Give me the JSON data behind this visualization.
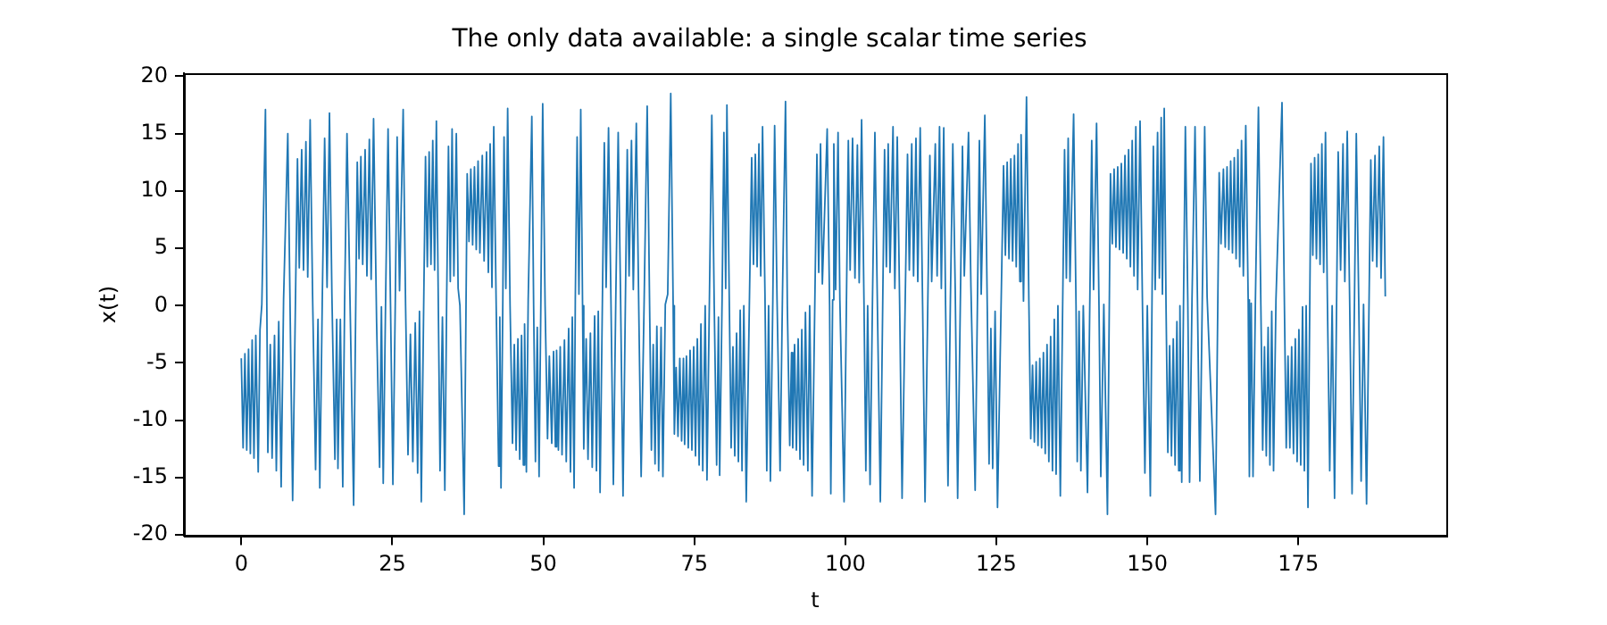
{
  "chart_data": {
    "type": "line",
    "title": "The only data available: a single scalar time series",
    "xlabel": "t",
    "ylabel": "x(t)",
    "xlim": [
      -9.5,
      199.5
    ],
    "ylim": [
      -20.1,
      20.3
    ],
    "xticks": [
      0,
      25,
      50,
      75,
      100,
      125,
      150,
      175
    ],
    "yticks": [
      -20,
      -15,
      -10,
      -5,
      0,
      5,
      10,
      15,
      20
    ],
    "grid": false,
    "legend": false,
    "marker": "none",
    "line_style": "solid",
    "series": [
      {
        "color": "#1f77b4",
        "x": [
          0,
          0.3,
          0.6,
          0.9,
          1.2,
          1.5,
          1.8,
          2.1,
          2.4,
          2.8,
          3.1,
          3.4,
          4.0,
          4.4,
          4.8,
          5.1,
          5.5,
          5.8,
          6.2,
          6.6,
          7.0,
          7.7,
          8.5,
          9.3,
          9.6,
          10.0,
          10.3,
          10.7,
          11.0,
          11.4,
          11.8,
          12.3,
          12.7,
          13.0,
          13.4,
          13.8,
          14.2,
          14.6,
          15.0,
          15.5,
          15.8,
          16.0,
          16.4,
          16.8,
          17.1,
          17.5,
          18.0,
          18.6,
          19.2,
          19.5,
          19.8,
          20.1,
          20.5,
          20.8,
          21.2,
          21.5,
          21.9,
          22.4,
          22.9,
          23.2,
          23.5,
          23.9,
          24.3,
          24.7,
          25.1,
          25.5,
          25.8,
          26.2,
          26.8,
          27.2,
          27.6,
          28.0,
          28.4,
          28.8,
          29.2,
          29.5,
          29.8,
          30.5,
          30.8,
          31.1,
          31.4,
          31.7,
          32.0,
          32.3,
          32.6,
          32.9,
          33.3,
          33.7,
          34.0,
          34.3,
          34.6,
          34.9,
          35.2,
          35.6,
          35.9,
          36.2,
          36.9,
          37.4,
          37.7,
          38.0,
          38.3,
          38.6,
          38.9,
          39.2,
          39.5,
          39.9,
          40.2,
          40.6,
          40.9,
          41.2,
          41.5,
          41.8,
          42.2,
          42.6,
          42.8,
          43.0,
          43.3,
          43.5,
          43.8,
          44.1,
          44.5,
          44.9,
          45.2,
          45.5,
          45.8,
          46.1,
          46.4,
          46.7,
          46.9,
          47.2,
          47.5,
          48.1,
          48.4,
          48.7,
          49.0,
          49.3,
          49.6,
          49.9,
          50.3,
          50.7,
          51.0,
          51.4,
          51.7,
          52.0,
          52.2,
          52.5,
          52.8,
          53.1,
          53.5,
          53.8,
          54.2,
          54.5,
          54.8,
          55.1,
          55.3,
          55.6,
          55.9,
          56.2,
          56.5,
          56.7,
          57.1,
          57.4,
          57.8,
          58.1,
          58.5,
          58.8,
          59.1,
          59.4,
          60.1,
          60.4,
          60.8,
          61.2,
          61.6,
          62.0,
          62.4,
          62.8,
          63.2,
          63.9,
          64.2,
          64.6,
          64.9,
          65.4,
          65.8,
          66.2,
          66.7,
          67.2,
          67.6,
          67.9,
          68.2,
          68.5,
          68.8,
          69.1,
          69.5,
          69.8,
          70.2,
          70.6,
          71.1,
          71.5,
          71.7,
          72.0,
          72.3,
          72.6,
          72.9,
          73.2,
          73.4,
          73.7,
          74.0,
          74.3,
          74.6,
          74.9,
          75.2,
          75.5,
          75.8,
          76.1,
          76.4,
          76.8,
          77.1,
          77.5,
          77.9,
          78.3,
          78.7,
          79.0,
          79.2,
          79.6,
          79.9,
          80.2,
          80.4,
          80.8,
          81.1,
          81.4,
          81.7,
          82.0,
          82.3,
          82.6,
          82.9,
          83.2,
          83.6,
          84.5,
          84.8,
          85.1,
          85.4,
          85.7,
          86.0,
          86.3,
          86.7,
          87.0,
          87.3,
          87.6,
          88.0,
          88.3,
          88.7,
          89.2,
          89.6,
          90.1,
          90.4,
          90.8,
          91.1,
          91.3,
          91.6,
          91.9,
          92.2,
          92.5,
          92.8,
          93.1,
          93.4,
          93.8,
          94.1,
          94.5,
          95.3,
          95.6,
          95.9,
          96.2,
          97.0,
          97.4,
          97.6,
          97.9,
          98.1,
          98.4,
          98.8,
          99.1,
          99.8,
          100.5,
          100.8,
          101.2,
          101.6,
          102.0,
          102.3,
          102.7,
          103.1,
          103.4,
          103.7,
          104.1,
          104.5,
          104.9,
          105.3,
          105.8,
          106.5,
          106.8,
          107.1,
          107.4,
          107.9,
          108.2,
          108.6,
          109.0,
          109.4,
          110.3,
          110.6,
          111.0,
          111.3,
          111.7,
          112.0,
          112.4,
          112.8,
          113.2,
          114.0,
          114.3,
          114.9,
          115.2,
          115.6,
          115.9,
          116.3,
          116.6,
          117.0,
          117.4,
          117.8,
          118.2,
          118.6,
          119.4,
          119.7,
          120.4,
          120.8,
          121.5,
          122.2,
          122.5,
          123.1,
          123.5,
          123.8,
          124.1,
          124.4,
          124.8,
          125.2,
          126.2,
          126.5,
          126.8,
          127.1,
          127.4,
          127.7,
          128.0,
          128.3,
          128.6,
          128.9,
          129.1,
          129.5,
          130.0,
          130.4,
          130.7,
          131.0,
          131.3,
          131.6,
          131.9,
          132.2,
          132.5,
          132.8,
          133.1,
          133.4,
          133.7,
          134.0,
          134.3,
          134.6,
          134.9,
          135.2,
          135.6,
          136.3,
          136.6,
          136.9,
          137.2,
          137.8,
          138.2,
          138.4,
          138.7,
          139.0,
          139.4,
          140.1,
          140.8,
          141.1,
          141.6,
          142.0,
          142.3,
          142.8,
          143.4,
          143.9,
          144.2,
          144.5,
          144.8,
          145.1,
          145.4,
          145.7,
          146.0,
          146.3,
          146.6,
          146.9,
          147.2,
          147.5,
          147.8,
          148.1,
          148.4,
          148.8,
          149.2,
          149.6,
          150.0,
          150.5,
          151.0,
          151.3,
          151.7,
          152.0,
          152.3,
          152.5,
          152.8,
          153.1,
          153.4,
          153.7,
          154.0,
          154.3,
          154.6,
          154.9,
          155.2,
          155.4,
          155.7,
          156.0,
          156.3,
          156.7,
          157.0,
          157.4,
          157.9,
          158.3,
          158.7,
          159.1,
          159.5,
          159.9,
          161.3,
          161.9,
          162.2,
          162.6,
          162.9,
          163.2,
          163.5,
          163.8,
          164.1,
          164.4,
          164.7,
          165.0,
          165.3,
          165.6,
          165.9,
          166.3,
          166.7,
          166.9,
          167.2,
          167.5,
          167.9,
          168.4,
          168.8,
          169.1,
          169.4,
          169.7,
          170.0,
          170.3,
          170.6,
          170.9,
          171.3,
          172.3,
          172.7,
          173.0,
          173.3,
          173.6,
          173.9,
          174.2,
          174.5,
          174.8,
          175.1,
          175.4,
          175.7,
          176.0,
          176.3,
          176.6,
          177.1,
          177.4,
          177.7,
          178.0,
          178.3,
          178.6,
          178.9,
          179.2,
          179.5,
          179.8,
          180.2,
          180.6,
          181.0,
          181.6,
          182.0,
          182.4,
          182.7,
          183.1,
          183.5,
          183.9,
          184.3,
          184.6,
          185.0,
          185.4,
          185.8,
          186.3,
          187.0,
          187.3,
          187.7,
          188.0,
          188.4,
          188.7,
          189.1,
          189.4
        ],
        "values": [
          -4.6,
          -12.4,
          -4.2,
          -12.6,
          -3.8,
          -12.9,
          -3.0,
          -13.3,
          -2.6,
          -14.5,
          -2.1,
          0.1,
          17.1,
          -12.8,
          -3.4,
          -13.3,
          -2.6,
          -14.4,
          -1.4,
          -15.8,
          0.5,
          15.0,
          -17.0,
          12.8,
          3.3,
          13.6,
          3.1,
          14.3,
          2.5,
          16.2,
          1.0,
          -14.3,
          -1.2,
          -15.9,
          0.2,
          14.6,
          1.6,
          16.8,
          1.0,
          -13.4,
          -1.2,
          -14.2,
          -1.2,
          -15.8,
          0.0,
          15.0,
          0.5,
          -17.4,
          12.5,
          4.1,
          13.0,
          3.6,
          13.6,
          2.6,
          14.5,
          2.3,
          16.3,
          -1.4,
          -14.1,
          -0.1,
          -15.5,
          0.8,
          15.4,
          0.3,
          -15.6,
          0.5,
          14.7,
          1.3,
          17.1,
          0,
          -13.0,
          -2.5,
          -13.6,
          -1.5,
          -14.6,
          -0.5,
          -17.1,
          13.0,
          3.4,
          13.4,
          3.6,
          14.4,
          3.1,
          16.1,
          1.1,
          -14.4,
          -1.0,
          -16.1,
          0.5,
          13.9,
          2.1,
          15.4,
          2.6,
          15.0,
          1.5,
          0.0,
          -18.2,
          11.5,
          5.6,
          11.9,
          5.3,
          12.1,
          4.9,
          12.6,
          4.6,
          13.1,
          3.9,
          13.4,
          2.9,
          14.1,
          1.6,
          15.6,
          0,
          -14.0,
          -1.0,
          -15.9,
          0.5,
          14.7,
          1.5,
          17.2,
          0,
          -12.0,
          -3.4,
          -12.6,
          -2.9,
          -13.4,
          -2.6,
          -13.9,
          -1.6,
          -14.5,
          0.5,
          16.5,
          0,
          -13.6,
          -1.9,
          -14.9,
          0.5,
          17.6,
          0,
          -11.6,
          -4.4,
          -12.0,
          -4.0,
          -12.3,
          -3.9,
          -12.6,
          -3.6,
          -13.0,
          -3.0,
          -13.6,
          -2.0,
          -14.5,
          -1.0,
          -15.9,
          0.5,
          14.7,
          1.0,
          17.1,
          0,
          -12.5,
          -2.9,
          -13.4,
          -2.4,
          -14.1,
          -0.9,
          -14.4,
          -0.5,
          -16.3,
          14.2,
          1.6,
          15.5,
          0.5,
          -15.6,
          0.5,
          15.1,
          0.5,
          -16.6,
          13.6,
          2.6,
          14.4,
          1.4,
          15.9,
          0,
          -14.9,
          0.5,
          17.4,
          0,
          -12.6,
          -3.4,
          -13.8,
          -1.8,
          -14.4,
          -1.9,
          -14.9,
          0.1,
          1.0,
          18.5,
          0,
          -11.2,
          -5.4,
          -11.4,
          -4.6,
          -11.8,
          -4.6,
          -12.1,
          -4.4,
          -12.4,
          -3.9,
          -12.6,
          -3.6,
          -13.1,
          -2.9,
          -13.9,
          -1.6,
          -14.4,
          0,
          -15.2,
          0.5,
          16.6,
          0,
          -13.9,
          -1.0,
          -14.8,
          0.5,
          15.1,
          1.5,
          17.5,
          0,
          -12.4,
          -3.6,
          -13.1,
          -2.4,
          -13.6,
          -0.4,
          -14.4,
          0,
          -17.1,
          12.9,
          3.6,
          13.2,
          3.4,
          14.1,
          2.6,
          15.6,
          1.0,
          -14.4,
          0,
          -15.3,
          0.5,
          15.7,
          0.5,
          -14.4,
          1.0,
          17.8,
          0,
          -12.2,
          -4.1,
          -12.4,
          -3.4,
          -12.6,
          -2.9,
          -13.4,
          -2.1,
          -13.9,
          -0.6,
          -14.4,
          0,
          -16.6,
          13.2,
          2.9,
          14.1,
          1.9,
          15.4,
          0,
          -16.4,
          0.5,
          14.1,
          1.4,
          15.1,
          0.5,
          -17.1,
          14.4,
          3.1,
          14.6,
          2.4,
          14.0,
          2.0,
          16.2,
          0,
          -14.4,
          0,
          -15.6,
          0.5,
          15.1,
          0.5,
          -17.1,
          13.6,
          3.4,
          14.1,
          2.9,
          15.6,
          1.5,
          14.7,
          0,
          -16.8,
          13.2,
          3.1,
          14.1,
          2.6,
          14.6,
          2.1,
          15.5,
          0,
          -17.1,
          13.1,
          2.1,
          14.1,
          2.6,
          15.6,
          1.5,
          15.5,
          0,
          -15.7,
          0.5,
          14.1,
          1.4,
          -16.8,
          13.9,
          2.6,
          15.1,
          1.6,
          -16.1,
          14.4,
          1.0,
          16.6,
          0,
          -13.8,
          -2.0,
          -14.2,
          -0.5,
          -17.6,
          12.2,
          4.4,
          12.5,
          4.1,
          12.8,
          3.9,
          13.1,
          3.4,
          14.1,
          2.1,
          14.9,
          0.4,
          18.2,
          0,
          -11.6,
          -5.2,
          -11.9,
          -4.9,
          -12.2,
          -4.6,
          -12.4,
          -4.1,
          -12.9,
          -3.4,
          -13.6,
          -2.7,
          -14.4,
          -1.2,
          -14.7,
          0,
          -16.6,
          13.6,
          2.4,
          14.6,
          2.1,
          16.7,
          0,
          -13.6,
          -0.5,
          -14.4,
          0,
          -16.3,
          14.4,
          1.4,
          15.9,
          0,
          -14.9,
          0.1,
          -18.2,
          11.5,
          5.4,
          11.9,
          5.1,
          12.1,
          4.9,
          12.4,
          4.6,
          13.1,
          4.1,
          13.6,
          3.4,
          14.4,
          2.6,
          15.6,
          1.4,
          16.1,
          0,
          -14.6,
          0,
          -16.6,
          13.9,
          1.4,
          15.1,
          2.4,
          16.4,
          1.0,
          17.2,
          0,
          -12.8,
          -3.5,
          -13.1,
          -2.9,
          -13.9,
          -1.4,
          -14.4,
          0,
          -15.4,
          0.5,
          15.6,
          0.5,
          -15.4,
          0.5,
          15.6,
          0.5,
          -15.3,
          0.5,
          15.6,
          0.8,
          -18.2,
          11.6,
          5.4,
          11.9,
          5.1,
          12.1,
          4.9,
          12.6,
          4.6,
          12.9,
          4.1,
          13.6,
          3.4,
          14.4,
          2.6,
          15.7,
          0.5,
          -14.9,
          0.2,
          -14.9,
          0.5,
          17.3,
          0,
          -12.6,
          -3.6,
          -13.1,
          -1.9,
          -13.9,
          -0.5,
          -14.4,
          0.5,
          17.7,
          0,
          -12.4,
          -4.4,
          -12.4,
          -3.6,
          -12.9,
          -2.9,
          -13.6,
          -2.1,
          -13.9,
          -0.1,
          -14.4,
          0,
          -17.6,
          12.4,
          4.4,
          12.9,
          4.1,
          13.2,
          3.6,
          14.1,
          2.9,
          15.1,
          1.0,
          -14.4,
          0,
          -16.8,
          13.4,
          3.1,
          14.1,
          2.1,
          15.2,
          0.5,
          -16.4,
          0.5,
          15.0,
          0.5,
          -15.3,
          0.1,
          -17.3,
          12.7,
          3.9,
          13.1,
          3.4,
          13.9,
          2.4,
          14.7,
          0.8
        ]
      }
    ]
  }
}
